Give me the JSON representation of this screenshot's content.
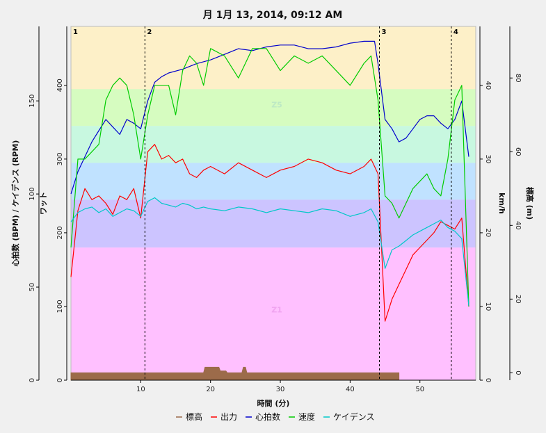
{
  "chart_data": {
    "type": "line",
    "title": "月 1月 13, 2014, 09:12 AM",
    "xlabel": "時間 (分)",
    "xlim": [
      0,
      58
    ],
    "xticks": [
      10,
      20,
      30,
      40,
      50
    ],
    "left_axes": [
      {
        "label": "心拍数 (BPM) / ケイデンス (RPM)",
        "ticks": [
          0,
          50,
          100,
          150
        ],
        "range": [
          0,
          190
        ]
      },
      {
        "label": "ワット",
        "ticks": [
          0,
          100,
          200,
          300,
          400
        ],
        "range": [
          0,
          480
        ]
      }
    ],
    "right_axes": [
      {
        "label": "km/h",
        "ticks": [
          0,
          10,
          20,
          30,
          40
        ],
        "range": [
          0,
          48
        ]
      },
      {
        "label": "標高 (m)",
        "ticks": [
          0,
          20,
          40,
          60,
          80
        ],
        "range": [
          -2,
          94
        ]
      }
    ],
    "zones": [
      {
        "name": "",
        "from": 0,
        "to": 180,
        "color": "#ffc0ff"
      },
      {
        "name": "",
        "from": 180,
        "to": 245,
        "color": "#ccc4ff"
      },
      {
        "name": "",
        "from": 245,
        "to": 295,
        "color": "#c0e2ff"
      },
      {
        "name": "",
        "from": 295,
        "to": 345,
        "color": "#c8f8e0"
      },
      {
        "name": "",
        "from": 345,
        "to": 395,
        "color": "#d6fcc0"
      },
      {
        "name": "",
        "from": 395,
        "to": 480,
        "color": "#fdf0c8"
      }
    ],
    "zone_labels": [
      {
        "text": "Z5",
        "x": 29.5,
        "watts": 370,
        "color": "#bde9c4"
      },
      {
        "text": "Z1",
        "x": 29.5,
        "watts": 92,
        "color": "#f0a4f0"
      }
    ],
    "intervals": [
      {
        "label": "1",
        "x": 0
      },
      {
        "label": "2",
        "x": 10.6
      },
      {
        "label": "3",
        "x": 44.2
      },
      {
        "label": "4",
        "x": 54.5
      }
    ],
    "series": [
      {
        "name": "標高",
        "color": "#9c6b4a",
        "axis": "elevation",
        "x": [
          0,
          19,
          19.2,
          21.2,
          21.4,
          22.2,
          22.4,
          24.5,
          24.7,
          25,
          25.2,
          47
        ],
        "y": [
          0,
          0,
          1.5,
          1.5,
          0.5,
          0.5,
          0,
          0,
          1.5,
          1.5,
          0,
          0
        ]
      },
      {
        "name": "出力",
        "color": "#ff0000",
        "axis": "watts",
        "x": [
          0,
          1,
          2,
          3,
          4,
          5,
          6,
          7,
          8,
          9,
          10,
          11,
          12,
          13,
          14,
          15,
          16,
          17,
          18,
          19,
          20,
          22,
          24,
          26,
          28,
          30,
          32,
          34,
          36,
          38,
          40,
          42,
          43,
          44,
          45,
          46,
          47,
          48,
          49,
          50,
          51,
          52,
          53,
          54,
          55,
          56,
          57
        ],
        "y": [
          140,
          230,
          260,
          245,
          250,
          240,
          225,
          250,
          245,
          260,
          220,
          310,
          320,
          300,
          305,
          295,
          300,
          280,
          275,
          285,
          290,
          280,
          295,
          285,
          275,
          285,
          290,
          300,
          295,
          285,
          280,
          290,
          300,
          280,
          80,
          110,
          130,
          150,
          170,
          180,
          190,
          200,
          215,
          210,
          205,
          220,
          100
        ]
      },
      {
        "name": "心拍数",
        "color": "#0000cc",
        "axis": "hr",
        "x": [
          0,
          1,
          2,
          3,
          4,
          5,
          6,
          7,
          8,
          9,
          10,
          11,
          12,
          13,
          14,
          16,
          18,
          20,
          22,
          24,
          26,
          28,
          30,
          32,
          34,
          36,
          38,
          40,
          42,
          43.5,
          44,
          45,
          46,
          47,
          48,
          49,
          50,
          51,
          52,
          53,
          54,
          55,
          56,
          57
        ],
        "y": [
          100,
          112,
          120,
          128,
          134,
          140,
          136,
          132,
          140,
          138,
          135,
          150,
          160,
          163,
          165,
          167,
          170,
          172,
          175,
          178,
          177,
          179,
          180,
          180,
          178,
          178,
          179,
          181,
          182,
          182,
          170,
          140,
          135,
          128,
          130,
          135,
          140,
          142,
          142,
          138,
          135,
          140,
          150,
          120
        ]
      },
      {
        "name": "速度",
        "color": "#00cc00",
        "axis": "speed",
        "x": [
          0,
          1,
          2,
          3,
          4,
          5,
          6,
          7,
          8,
          9,
          10,
          11,
          12,
          13,
          14,
          15,
          16,
          17,
          18,
          19,
          20,
          22,
          24,
          26,
          28,
          30,
          32,
          34,
          36,
          38,
          40,
          42,
          43,
          44,
          45,
          46,
          47,
          48,
          49,
          50,
          51,
          52,
          53,
          54,
          55,
          56,
          57
        ],
        "y": [
          18,
          30,
          30,
          31,
          32,
          38,
          40,
          41,
          40,
          36,
          30,
          36,
          40,
          40,
          40,
          36,
          42,
          44,
          43,
          40,
          45,
          44,
          41,
          45,
          45,
          42,
          44,
          43,
          44,
          42,
          40,
          43,
          44,
          38,
          25,
          24,
          22,
          24,
          26,
          27,
          28,
          26,
          25,
          30,
          38,
          40,
          10
        ]
      },
      {
        "name": "ケイデンス",
        "color": "#00c8c8",
        "axis": "cadence",
        "x": [
          0,
          1,
          2,
          3,
          4,
          5,
          6,
          7,
          8,
          9,
          10,
          11,
          12,
          13,
          14,
          15,
          16,
          17,
          18,
          19,
          20,
          22,
          24,
          26,
          28,
          30,
          32,
          34,
          36,
          38,
          40,
          42,
          43,
          44,
          45,
          46,
          47,
          48,
          49,
          50,
          51,
          52,
          53,
          54,
          55,
          56,
          57
        ],
        "y": [
          85,
          90,
          92,
          93,
          90,
          92,
          88,
          90,
          92,
          91,
          88,
          96,
          98,
          95,
          94,
          93,
          95,
          94,
          92,
          93,
          92,
          91,
          93,
          92,
          90,
          92,
          91,
          90,
          92,
          91,
          88,
          90,
          92,
          85,
          60,
          70,
          72,
          75,
          78,
          80,
          82,
          84,
          86,
          82,
          80,
          76,
          40
        ]
      }
    ],
    "legend": {
      "position": "bottom-center",
      "entries": [
        "標高",
        "出力",
        "心拍数",
        "速度",
        "ケイデンス"
      ]
    }
  }
}
